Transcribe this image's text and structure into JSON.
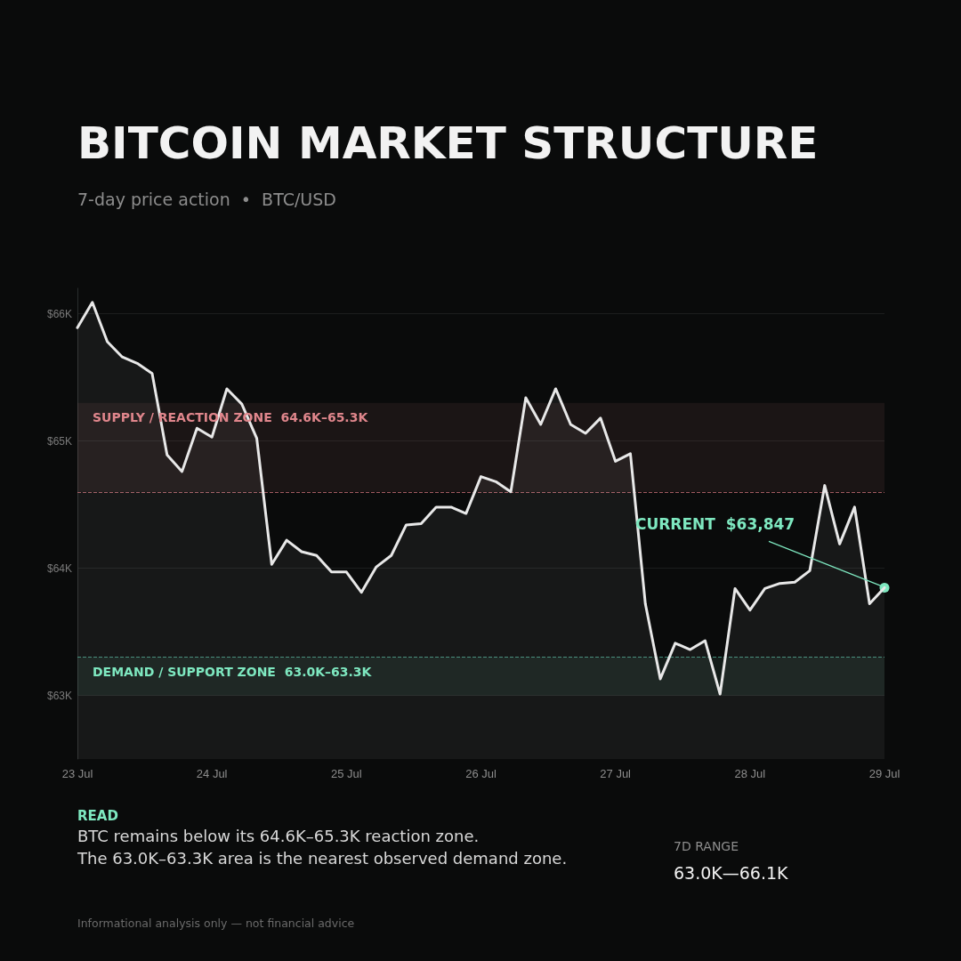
{
  "chart_data": {
    "type": "area",
    "title": "BITCOIN MARKET STRUCTURE",
    "subtitle": "7-day price action  •  BTC/USD",
    "categories": [
      "23 Jul",
      null,
      null,
      null,
      null,
      null,
      null,
      null,
      null,
      "24 Jul",
      null,
      null,
      null,
      null,
      null,
      null,
      null,
      null,
      "25 Jul",
      null,
      null,
      null,
      null,
      null,
      null,
      null,
      null,
      "26 Jul",
      null,
      null,
      null,
      null,
      null,
      null,
      null,
      null,
      "27 Jul",
      null,
      null,
      null,
      null,
      null,
      null,
      null,
      null,
      "28 Jul",
      null,
      null,
      null,
      null,
      null,
      null,
      null,
      null,
      "29 Jul"
    ],
    "series": [
      {
        "color": "#e8e8e8",
        "values": [
          65890,
          66090,
          65780,
          65660,
          65610,
          65530,
          64890,
          64760,
          65100,
          65030,
          65410,
          65290,
          65020,
          64030,
          64220,
          64130,
          64100,
          63970,
          63970,
          63810,
          64010,
          64100,
          64340,
          64350,
          64480,
          64480,
          64430,
          64720,
          64680,
          64600,
          65340,
          65130,
          65410,
          65130,
          65060,
          65180,
          64840,
          64900,
          63720,
          63130,
          63410,
          63360,
          63430,
          63010,
          63840,
          63670,
          63840,
          63880,
          63890,
          63980,
          64650,
          64190,
          64480,
          63720,
          63847
        ]
      }
    ],
    "ylim": [
      62500,
      66200
    ],
    "yticks": [
      {
        "value": 63000,
        "label": "$63K"
      },
      {
        "value": 64000,
        "label": "$64K"
      },
      {
        "value": 65000,
        "label": "$65K"
      },
      {
        "value": 66000,
        "label": "$66K"
      }
    ],
    "bands": [
      {
        "axis": "y",
        "from": 64600,
        "to": 65300,
        "label": "SUPPLY / REACTION ZONE  64.6K–65.3K",
        "color": "#e0868c"
      },
      {
        "axis": "y",
        "from": 63000,
        "to": 63300,
        "label": "DEMAND / SUPPORT ZONE  63.0K–63.3K",
        "color": "#7ee8c0"
      }
    ],
    "ref_lines": [
      {
        "axis": "y",
        "value": 64600,
        "color": "#a05a60",
        "line_style": "dashed"
      },
      {
        "axis": "y",
        "value": 63300,
        "color": "#3f8a78",
        "line_style": "dashed"
      }
    ],
    "annotations": [
      "READ",
      "BTC remains below its 64.6K–65.3K reaction zone.",
      "The 63.0K–63.3K area is the nearest observed demand zone.",
      "7D RANGE",
      "63.0K—66.1K",
      "Informational analysis only — not financial advice",
      {
        "text": "CURRENT  $63,847",
        "x": "29 Jul",
        "y": 63847
      }
    ],
    "grid": "y",
    "marker": "none",
    "line_style": "solid"
  }
}
